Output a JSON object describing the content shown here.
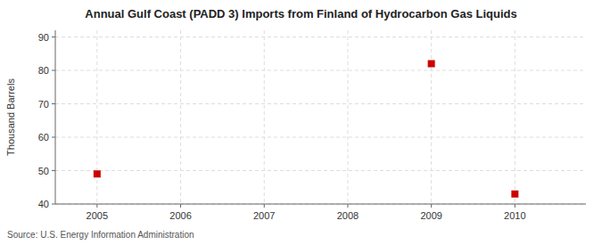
{
  "chart_data": {
    "type": "scatter",
    "title": "Annual Gulf Coast (PADD 3) Imports from Finland of Hydrocarbon Gas Liquids",
    "ylabel": "Thousand Barrels",
    "source": "Source: U.S. Energy Information Administration",
    "x": [
      2005,
      2009,
      2010
    ],
    "values": [
      49,
      82,
      43
    ],
    "color": "#cc0000",
    "marker": "square",
    "xlim": [
      2004.5,
      2010.85
    ],
    "ylim": [
      40,
      92
    ],
    "xticks": [
      2005,
      2006,
      2007,
      2008,
      2009,
      2010
    ],
    "yticks": [
      40,
      50,
      60,
      70,
      80,
      90
    ],
    "grid": true
  }
}
